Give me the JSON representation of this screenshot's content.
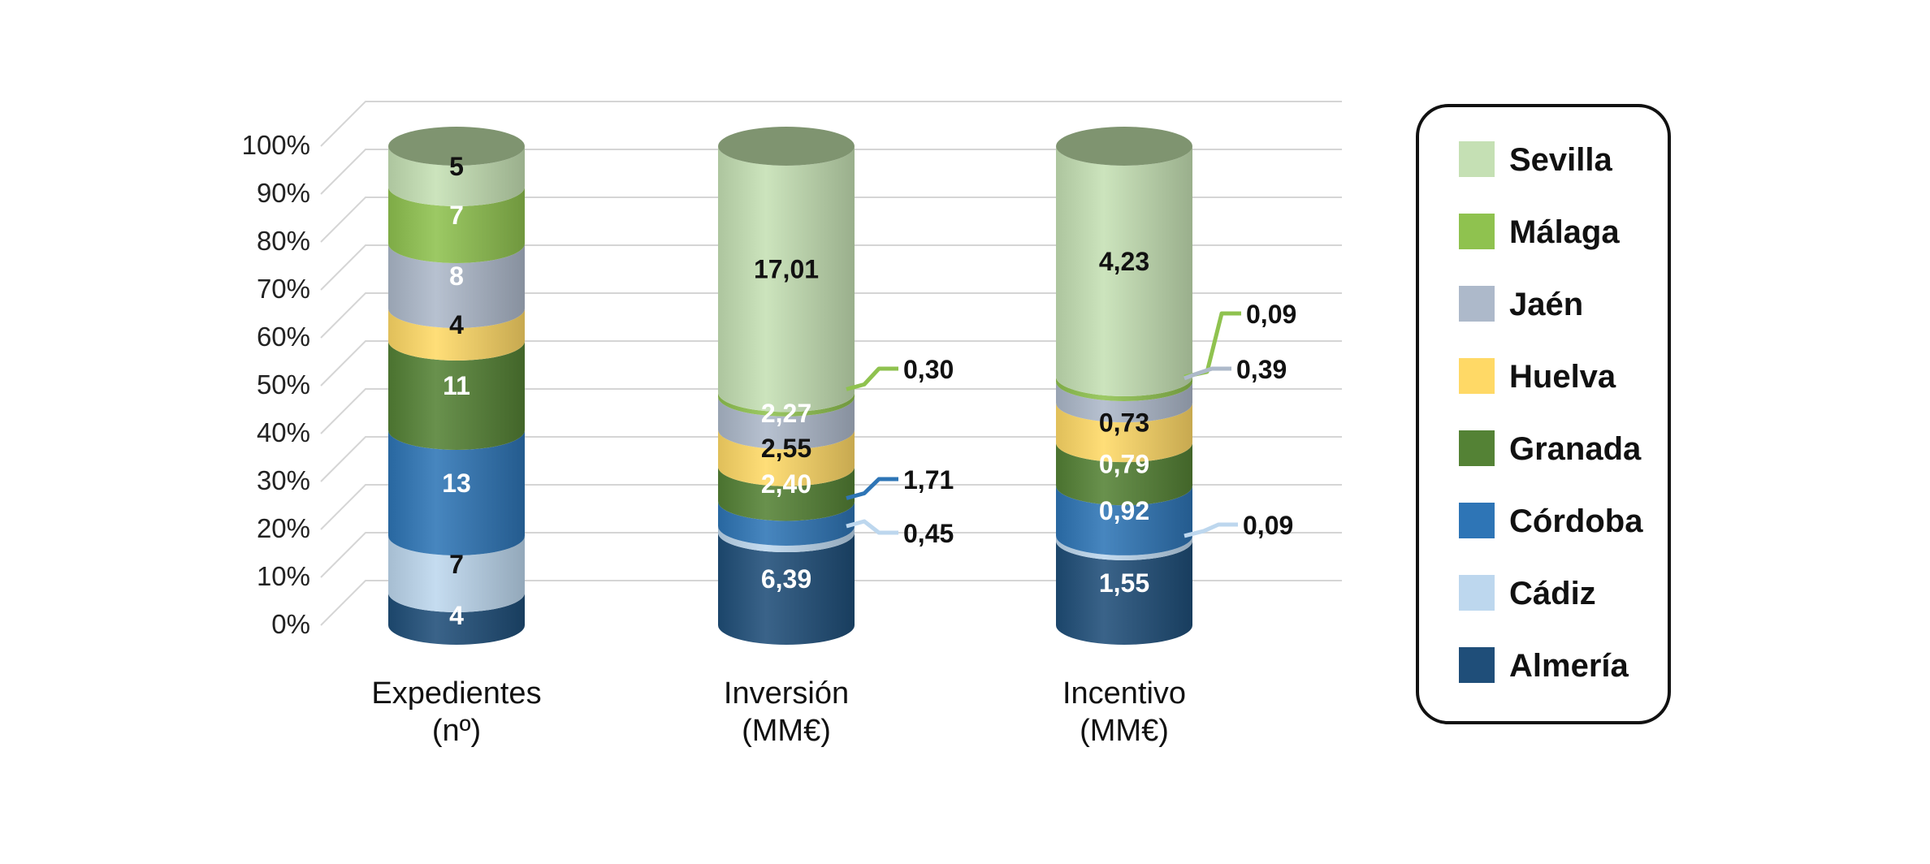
{
  "chart_data": {
    "type": "bar",
    "stacked": true,
    "normalized_percent": true,
    "yticks": [
      "0%",
      "10%",
      "20%",
      "30%",
      "40%",
      "50%",
      "60%",
      "70%",
      "80%",
      "90%",
      "100%"
    ],
    "categories": [
      {
        "line1": "Expedientes",
        "line2": "(nº)"
      },
      {
        "line1": "Inversión",
        "line2": "(MM€)"
      },
      {
        "line1": "Incentivo",
        "line2": "(MM€)"
      }
    ],
    "series": [
      {
        "name": "Almería",
        "color": "#1f4e79",
        "values": [
          4,
          6.39,
          1.55
        ],
        "labels": [
          "4",
          "6,39",
          "1,55"
        ]
      },
      {
        "name": "Cádiz",
        "color": "#bdd7ee",
        "values": [
          7,
          0.45,
          0.09
        ],
        "labels": [
          "7",
          "0,45",
          "0,09"
        ]
      },
      {
        "name": "Córdoba",
        "color": "#2e75b6",
        "values": [
          13,
          1.71,
          0.92
        ],
        "labels": [
          "13",
          "1,71",
          "0,92"
        ]
      },
      {
        "name": "Granada",
        "color": "#548235",
        "values": [
          11,
          2.4,
          0.79
        ],
        "labels": [
          "11",
          "2,40",
          "0,79"
        ]
      },
      {
        "name": "Huelva",
        "color": "#ffd966",
        "values": [
          4,
          2.55,
          0.73
        ],
        "labels": [
          "4",
          "2,55",
          "0,73"
        ]
      },
      {
        "name": "Jaén",
        "color": "#adb9ca",
        "values": [
          8,
          2.27,
          0.39
        ],
        "labels": [
          "8",
          "2,27",
          "0,39"
        ]
      },
      {
        "name": "Málaga",
        "color": "#8fc24f",
        "values": [
          7,
          0.3,
          0.09
        ],
        "labels": [
          "7",
          "0,30",
          "0,09"
        ]
      },
      {
        "name": "Sevilla",
        "color": "#c5e0b4",
        "values": [
          5,
          17.01,
          4.23
        ],
        "labels": [
          "5",
          "17,01",
          "4,23"
        ]
      }
    ],
    "legend_order": [
      "Sevilla",
      "Málaga",
      "Jaén",
      "Huelva",
      "Granada",
      "Córdoba",
      "Cádiz",
      "Almería"
    ]
  }
}
